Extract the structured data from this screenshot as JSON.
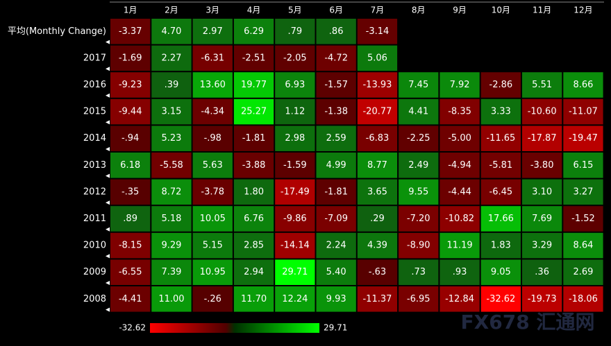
{
  "chart_data": {
    "type": "heatmap",
    "categories": [
      "1月",
      "2月",
      "3月",
      "4月",
      "5月",
      "6月",
      "7月",
      "8月",
      "9月",
      "10月",
      "11月",
      "12月"
    ],
    "rows": [
      "平均(Monthly Change)",
      "2017",
      "2016",
      "2015",
      "2014",
      "2013",
      "2012",
      "2011",
      "2010",
      "2009",
      "2008"
    ],
    "values": [
      [
        -3.37,
        4.7,
        2.97,
        6.29,
        0.79,
        0.86,
        -3.14,
        null,
        null,
        null,
        null,
        null
      ],
      [
        -1.69,
        2.27,
        -6.31,
        -2.51,
        -2.05,
        -4.72,
        5.06,
        null,
        null,
        null,
        null,
        null
      ],
      [
        -9.23,
        0.39,
        13.6,
        19.77,
        6.93,
        -1.57,
        -13.93,
        7.45,
        7.92,
        -2.86,
        5.51,
        8.66
      ],
      [
        -9.44,
        3.15,
        -4.34,
        25.27,
        1.12,
        -1.38,
        -20.77,
        4.41,
        -8.35,
        3.33,
        -10.6,
        -11.07
      ],
      [
        -0.94,
        5.23,
        -0.98,
        -1.81,
        2.98,
        2.59,
        -6.83,
        -2.25,
        -5.0,
        -11.65,
        -17.87,
        -19.47
      ],
      [
        6.18,
        -5.58,
        5.63,
        -3.88,
        -1.59,
        4.99,
        8.77,
        2.49,
        -4.94,
        -5.81,
        -3.8,
        6.15
      ],
      [
        -0.35,
        8.72,
        -3.78,
        1.8,
        -17.49,
        -1.81,
        3.65,
        9.55,
        -4.44,
        -6.45,
        3.1,
        3.27
      ],
      [
        0.89,
        5.18,
        10.05,
        6.76,
        -9.86,
        -7.09,
        0.29,
        -7.2,
        -10.82,
        17.66,
        7.69,
        -1.52
      ],
      [
        -8.15,
        9.29,
        5.15,
        2.85,
        -14.14,
        2.24,
        4.39,
        -8.9,
        11.19,
        1.83,
        3.29,
        8.64
      ],
      [
        -6.55,
        7.39,
        10.95,
        2.94,
        29.71,
        5.4,
        -0.63,
        0.73,
        0.93,
        9.05,
        0.36,
        2.69
      ],
      [
        -4.41,
        11.0,
        -0.26,
        11.7,
        12.24,
        9.93,
        -11.37,
        -6.95,
        -12.84,
        -32.62,
        -19.73,
        -18.06
      ]
    ],
    "value_labels": [
      [
        "-3.37",
        "4.70",
        "2.97",
        "6.29",
        ".79",
        ".86",
        "-3.14",
        null,
        null,
        null,
        null,
        null
      ],
      [
        "-1.69",
        "2.27",
        "-6.31",
        "-2.51",
        "-2.05",
        "-4.72",
        "5.06",
        null,
        null,
        null,
        null,
        null
      ],
      [
        "-9.23",
        ".39",
        "13.60",
        "19.77",
        "6.93",
        "-1.57",
        "-13.93",
        "7.45",
        "7.92",
        "-2.86",
        "5.51",
        "8.66"
      ],
      [
        "-9.44",
        "3.15",
        "-4.34",
        "25.27",
        "1.12",
        "-1.38",
        "-20.77",
        "4.41",
        "-8.35",
        "3.33",
        "-10.60",
        "-11.07"
      ],
      [
        "-.94",
        "5.23",
        "-.98",
        "-1.81",
        "2.98",
        "2.59",
        "-6.83",
        "-2.25",
        "-5.00",
        "-11.65",
        "-17.87",
        "-19.47"
      ],
      [
        "6.18",
        "-5.58",
        "5.63",
        "-3.88",
        "-1.59",
        "4.99",
        "8.77",
        "2.49",
        "-4.94",
        "-5.81",
        "-3.80",
        "6.15"
      ],
      [
        "-.35",
        "8.72",
        "-3.78",
        "1.80",
        "-17.49",
        "-1.81",
        "3.65",
        "9.55",
        "-4.44",
        "-6.45",
        "3.10",
        "3.27"
      ],
      [
        ".89",
        "5.18",
        "10.05",
        "6.76",
        "-9.86",
        "-7.09",
        ".29",
        "-7.20",
        "-10.82",
        "17.66",
        "7.69",
        "-1.52"
      ],
      [
        "-8.15",
        "9.29",
        "5.15",
        "2.85",
        "-14.14",
        "2.24",
        "4.39",
        "-8.90",
        "11.19",
        "1.83",
        "3.29",
        "8.64"
      ],
      [
        "-6.55",
        "7.39",
        "10.95",
        "2.94",
        "29.71",
        "5.40",
        "-.63",
        ".73",
        ".93",
        "9.05",
        ".36",
        "2.69"
      ],
      [
        "-4.41",
        "11.00",
        "-.26",
        "11.70",
        "12.24",
        "9.93",
        "-11.37",
        "-6.95",
        "-12.84",
        "-32.62",
        "-19.73",
        "-18.06"
      ]
    ],
    "zlim": [
      -32.62,
      29.71
    ],
    "watermark": "FX678 汇通网"
  }
}
